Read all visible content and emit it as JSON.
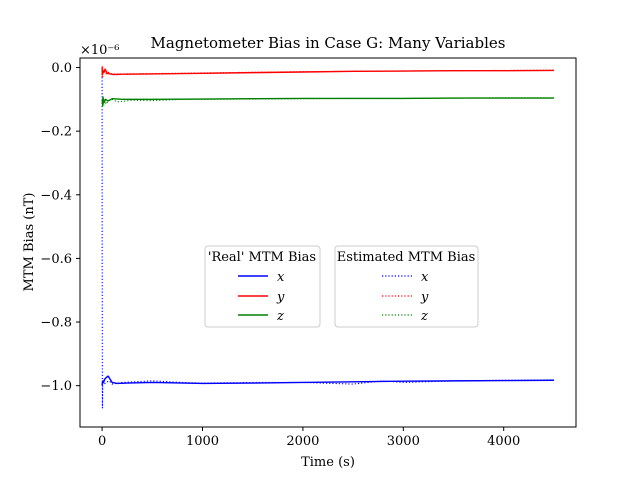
{
  "chart_data": {
    "type": "line",
    "title": "Magnetometer Bias in Case G: Many Variables",
    "xlabel": "Time (s)",
    "ylabel": "MTM Bias (nT)",
    "offset_text": "×10⁻⁶",
    "xlim": [
      -220,
      4720
    ],
    "ylim": [
      -1.13,
      0.03
    ],
    "xticks": [
      0,
      1000,
      2000,
      3000,
      4000
    ],
    "xtick_labels": [
      "0",
      "1000",
      "2000",
      "3000",
      "4000"
    ],
    "yticks": [
      0.0,
      -0.2,
      -0.4,
      -0.6,
      -0.8,
      -1.0
    ],
    "ytick_labels": [
      "0.0",
      "−0.2",
      "−0.4",
      "−0.6",
      "−0.8",
      "−1.0"
    ],
    "grid": false,
    "legends": [
      {
        "title": "'Real' MTM Bias",
        "entries": [
          {
            "label": "x",
            "color": "#0000ff",
            "style": "solid"
          },
          {
            "label": "y",
            "color": "#ff0000",
            "style": "solid"
          },
          {
            "label": "z",
            "color": "#008000",
            "style": "solid"
          }
        ]
      },
      {
        "title": "Estimated MTM Bias",
        "entries": [
          {
            "label": "x",
            "color": "#0000ff",
            "style": "dotted"
          },
          {
            "label": "y",
            "color": "#ff0000",
            "style": "dotted"
          },
          {
            "label": "z",
            "color": "#008000",
            "style": "dotted"
          }
        ]
      }
    ],
    "legend_placement": "center",
    "series": [
      {
        "legend": "'Real' MTM Bias",
        "label": "x",
        "color": "#0000ff",
        "style": "solid",
        "x": [
          0,
          3,
          8,
          15,
          25,
          40,
          60,
          80,
          100,
          150,
          250,
          500,
          1000,
          1500,
          2000,
          2500,
          3000,
          3500,
          4000,
          4500
        ],
        "y": [
          -1.0,
          -0.99,
          -0.985,
          -0.99,
          -0.98,
          -0.975,
          -0.97,
          -0.98,
          -0.99,
          -0.993,
          -0.992,
          -0.99,
          -0.993,
          -0.992,
          -0.99,
          -0.988,
          -0.986,
          -0.985,
          -0.984,
          -0.983
        ]
      },
      {
        "legend": "Estimated MTM Bias",
        "label": "x",
        "color": "#0000ff",
        "style": "dotted",
        "x": [
          0,
          1,
          3,
          6,
          10,
          20,
          40,
          70,
          100,
          200,
          500,
          800,
          1000,
          1500,
          2000,
          2500,
          2800,
          3000,
          3500,
          4000,
          4500
        ],
        "y": [
          0.0,
          -0.6,
          -1.07,
          -1.0,
          -0.985,
          -0.995,
          -0.99,
          -0.985,
          -0.995,
          -0.99,
          -0.985,
          -0.99,
          -0.992,
          -0.99,
          -0.99,
          -0.995,
          -0.985,
          -0.99,
          -0.985,
          -0.983,
          -0.982
        ]
      },
      {
        "legend": "'Real' MTM Bias",
        "label": "y",
        "color": "#ff0000",
        "style": "solid",
        "x": [
          0,
          3,
          10,
          20,
          30,
          50,
          80,
          120,
          200,
          500,
          1000,
          1500,
          2000,
          2500,
          3000,
          3500,
          4000,
          4500
        ],
        "y": [
          0.0,
          -0.02,
          -0.01,
          -0.015,
          -0.005,
          -0.018,
          -0.02,
          -0.022,
          -0.021,
          -0.02,
          -0.018,
          -0.016,
          -0.014,
          -0.012,
          -0.011,
          -0.01,
          -0.01,
          -0.009
        ]
      },
      {
        "legend": "Estimated MTM Bias",
        "label": "y",
        "color": "#ff0000",
        "style": "dotted",
        "x": [
          0,
          2,
          5,
          10,
          20,
          40,
          60,
          100,
          200,
          500,
          1000,
          1500,
          2000,
          2500,
          3000,
          3500,
          4000,
          4500
        ],
        "y": [
          -0.03,
          0.005,
          -0.03,
          -0.015,
          -0.01,
          -0.02,
          -0.015,
          -0.02,
          -0.02,
          -0.019,
          -0.017,
          -0.015,
          -0.013,
          -0.012,
          -0.011,
          -0.01,
          -0.009,
          -0.008
        ]
      },
      {
        "legend": "'Real' MTM Bias",
        "label": "z",
        "color": "#008000",
        "style": "solid",
        "x": [
          0,
          5,
          10,
          20,
          35,
          60,
          100,
          200,
          500,
          1000,
          1500,
          2000,
          2500,
          3000,
          3500,
          4000,
          4500
        ],
        "y": [
          -0.1,
          -0.115,
          -0.095,
          -0.11,
          -0.1,
          -0.105,
          -0.098,
          -0.1,
          -0.1,
          -0.099,
          -0.098,
          -0.097,
          -0.097,
          -0.097,
          -0.096,
          -0.096,
          -0.096
        ]
      },
      {
        "legend": "Estimated MTM Bias",
        "label": "z",
        "color": "#008000",
        "style": "dotted",
        "x": [
          0,
          3,
          8,
          15,
          25,
          40,
          60,
          100,
          150,
          300,
          500,
          800,
          1000,
          1500,
          2000,
          2500,
          3000,
          3500,
          4000,
          4500
        ],
        "y": [
          -0.1,
          -0.125,
          -0.09,
          -0.12,
          -0.1,
          -0.115,
          -0.105,
          -0.1,
          -0.108,
          -0.103,
          -0.104,
          -0.1,
          -0.1,
          -0.099,
          -0.098,
          -0.097,
          -0.097,
          -0.096,
          -0.095,
          -0.095
        ]
      }
    ]
  }
}
